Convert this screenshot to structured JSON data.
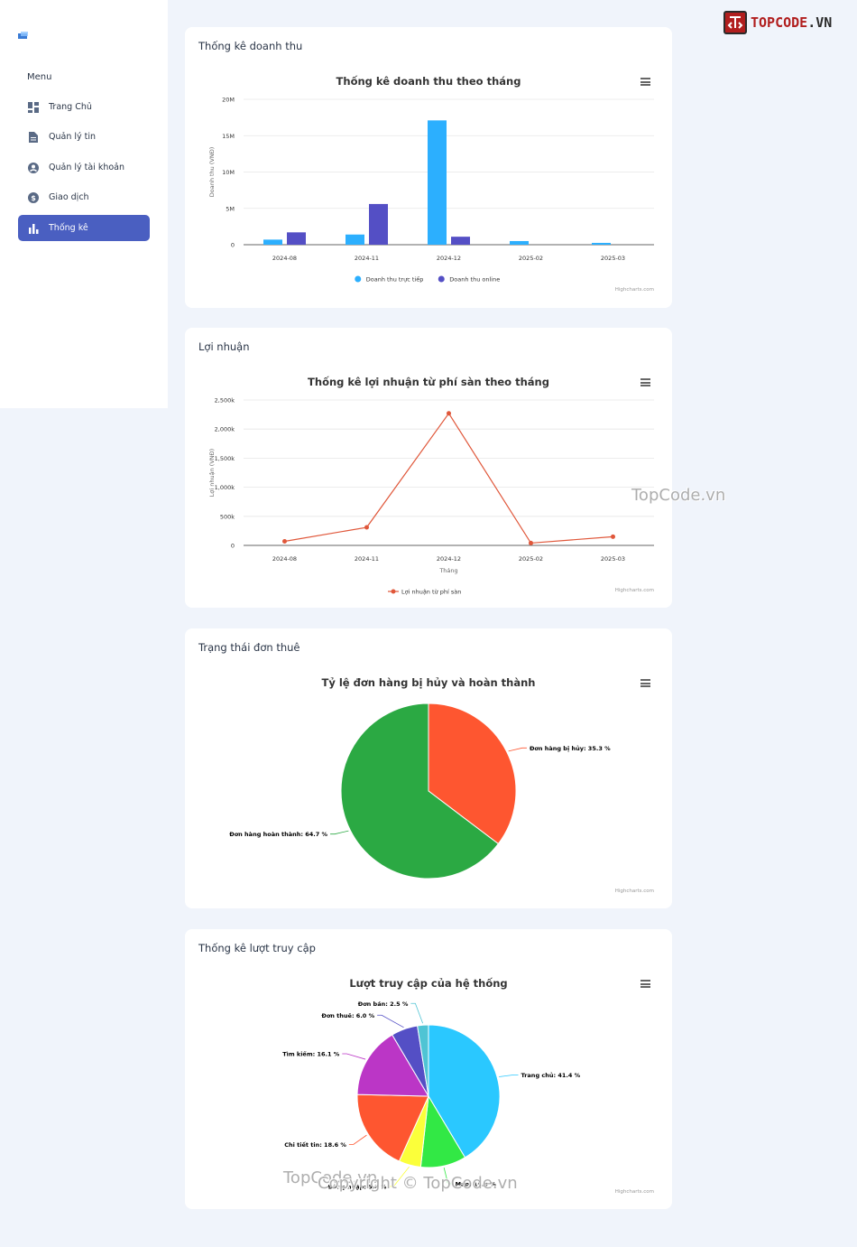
{
  "brand": {
    "logo_text_1": "TOPCODE",
    "logo_text_2": ".VN"
  },
  "sidebar": {
    "menu_title": "Menu",
    "items": [
      {
        "label": "Trang Chủ",
        "icon": "dashboard-icon"
      },
      {
        "label": "Quản lý tin",
        "icon": "document-icon"
      },
      {
        "label": "Quản lý tài khoản",
        "icon": "account-icon"
      },
      {
        "label": "Giao dịch",
        "icon": "dollar-icon"
      },
      {
        "label": "Thống kê",
        "icon": "bar-chart-icon",
        "active": true
      }
    ]
  },
  "cards": {
    "revenue": {
      "title": "Thống kê doanh thu"
    },
    "profit": {
      "title": "Lợi nhuận"
    },
    "orders": {
      "title": "Trạng thái đơn thuê"
    },
    "visits": {
      "title": "Thống kê lượt truy cập"
    }
  },
  "credit": "Highcharts.com",
  "watermarks": {
    "side": "TopCode.vn",
    "bottom_left": "TopCode.vn",
    "bottom": "Copyright © TopCode.vn"
  },
  "chart_data": [
    {
      "type": "bar",
      "title": "Thống kê doanh thu theo tháng",
      "ylabel": "Doanh thu (VNĐ)",
      "xlabel": "",
      "categories": [
        "2024-08",
        "2024-11",
        "2024-12",
        "2025-02",
        "2025-03"
      ],
      "ylim": [
        0,
        20000000
      ],
      "yticks": [
        "0",
        "5M",
        "10M",
        "15M",
        "20M"
      ],
      "series": [
        {
          "name": "Doanh thu trực tiếp",
          "color": "#2caffe",
          "values": [
            700000,
            1400000,
            17100000,
            500000,
            250000
          ]
        },
        {
          "name": "Doanh thu online",
          "color": "#544fc5",
          "values": [
            1700000,
            5600000,
            1100000,
            0,
            0
          ]
        }
      ],
      "legend": "bottom-center"
    },
    {
      "type": "line",
      "title": "Thống kê lợi nhuận từ phí sàn theo tháng",
      "ylabel": "Lợi nhuận (VNĐ)",
      "xlabel": "Tháng",
      "categories": [
        "2024-08",
        "2024-11",
        "2024-12",
        "2025-02",
        "2025-03"
      ],
      "ylim": [
        0,
        2500000
      ],
      "yticks": [
        "0",
        "500k",
        "1,000k",
        "1,500k",
        "2,000k",
        "2,500k"
      ],
      "series": [
        {
          "name": "Lợi nhuận từ phí sàn",
          "color": "#e0573a",
          "values": [
            70000,
            310000,
            2270000,
            40000,
            150000
          ]
        }
      ],
      "legend": "bottom-center"
    },
    {
      "type": "pie",
      "title": "Tỷ lệ đơn hàng bị hủy và hoàn thành",
      "slices": [
        {
          "label": "Đơn hàng bị hủy",
          "value": 35.3,
          "color": "#fe5630"
        },
        {
          "label": "Đơn hàng hoàn thành",
          "value": 64.7,
          "color": "#2ba943"
        }
      ]
    },
    {
      "type": "pie",
      "title": "Lượt truy cập của hệ thống",
      "slices": [
        {
          "label": "Trang chủ",
          "value": 41.4,
          "color": "#2ac8ff"
        },
        {
          "label": "Map",
          "value": 10.3,
          "color": "#32e845"
        },
        {
          "label": "Đăng nhập",
          "value": 5.0,
          "color": "#fbff3a"
        },
        {
          "label": "Chi tiết tin",
          "value": 18.6,
          "color": "#fe5630"
        },
        {
          "label": "Tìm kiếm",
          "value": 16.1,
          "color": "#bb36c6"
        },
        {
          "label": "Đơn thuê",
          "value": 6.0,
          "color": "#544fc5"
        },
        {
          "label": "Đơn bán",
          "value": 2.5,
          "color": "#4fc4d4"
        }
      ]
    }
  ]
}
